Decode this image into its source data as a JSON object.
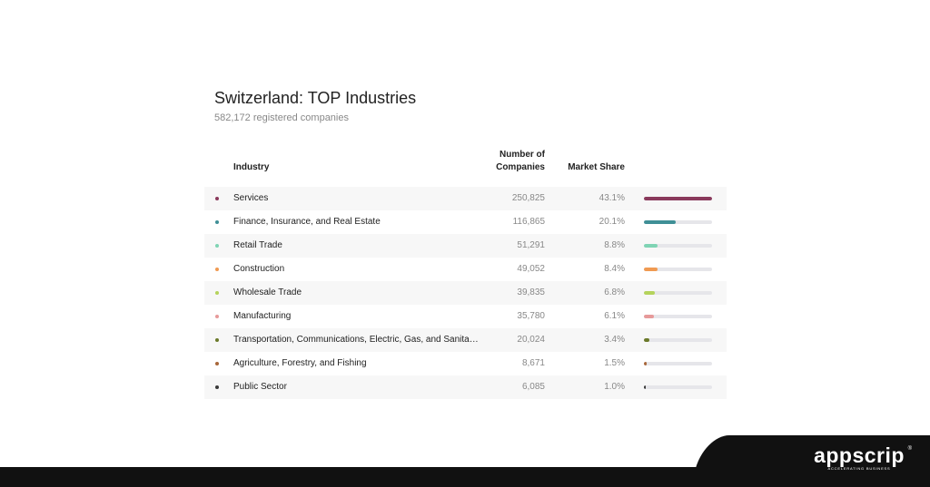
{
  "header": {
    "title": "Switzerland: TOP Industries",
    "subtitle": "582,172 registered companies"
  },
  "columns": {
    "industry": "Industry",
    "number_line1": "Number of",
    "number_line2": "Companies",
    "share": "Market Share"
  },
  "chart_data": {
    "type": "table",
    "title": "Switzerland: TOP Industries",
    "subtitle": "582,172 registered companies",
    "columns": [
      "Industry",
      "Number of Companies",
      "Market Share"
    ],
    "rows": [
      {
        "industry": "Services",
        "companies": "250,825",
        "share": "43.1%",
        "share_value": 43.1,
        "color": "#8a3a5c"
      },
      {
        "industry": "Finance, Insurance, and Real Estate",
        "companies": "116,865",
        "share": "20.1%",
        "share_value": 20.1,
        "color": "#3f8f96"
      },
      {
        "industry": "Retail Trade",
        "companies": "51,291",
        "share": "8.8%",
        "share_value": 8.8,
        "color": "#7fd4b4"
      },
      {
        "industry": "Construction",
        "companies": "49,052",
        "share": "8.4%",
        "share_value": 8.4,
        "color": "#f09a52"
      },
      {
        "industry": "Wholesale Trade",
        "companies": "39,835",
        "share": "6.8%",
        "share_value": 6.8,
        "color": "#b5d35c"
      },
      {
        "industry": "Manufacturing",
        "companies": "35,780",
        "share": "6.1%",
        "share_value": 6.1,
        "color": "#e79a9a"
      },
      {
        "industry": "Transportation, Communications, Electric, Gas, and Sanitary…",
        "companies": "20,024",
        "share": "3.4%",
        "share_value": 3.4,
        "color": "#6b7a2a"
      },
      {
        "industry": "Agriculture, Forestry, and Fishing",
        "companies": "8,671",
        "share": "1.5%",
        "share_value": 1.5,
        "color": "#a8673a"
      },
      {
        "industry": "Public Sector",
        "companies": "6,085",
        "share": "1.0%",
        "share_value": 1.0,
        "color": "#3a3a3a"
      }
    ],
    "bar_max": 43.1
  },
  "branding": {
    "logo_text": "appscrip",
    "registered_mark": "®",
    "tagline": "ACCELERATING BUSINESS",
    "footer_color": "#111111"
  }
}
